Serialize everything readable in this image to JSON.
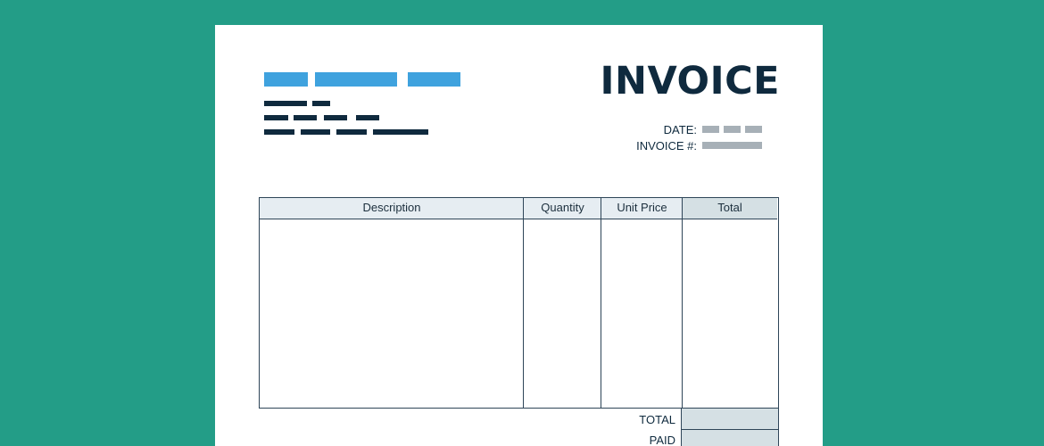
{
  "document": {
    "title": "INVOICE",
    "date_label": "DATE:",
    "invoice_number_label": "INVOICE #:"
  },
  "table": {
    "columns": [
      "Description",
      "Quantity",
      "Unit Price",
      "Total"
    ]
  },
  "summary": {
    "total_label": "TOTAL",
    "paid_label": "PAID"
  },
  "colors": {
    "background": "#239d87",
    "accent_blue": "#3fa2de",
    "navy": "#0f2a3e",
    "header_fill": "#e6edf2",
    "total_fill": "#d5e0e4"
  }
}
